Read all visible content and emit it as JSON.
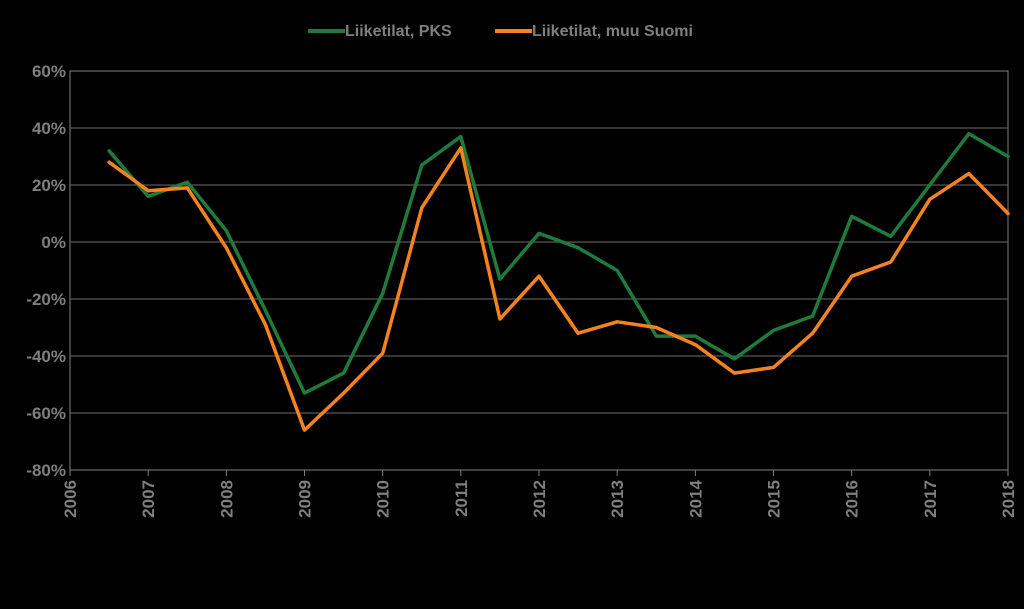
{
  "chart_data": {
    "type": "line",
    "title": "",
    "xlabel": "",
    "ylabel": "",
    "x_ticks": [
      "2006",
      "2007",
      "2008",
      "2009",
      "2010",
      "2011",
      "2012",
      "2013",
      "2014",
      "2015",
      "2016",
      "2017",
      "2018"
    ],
    "y_ticks": [
      "60%",
      "40%",
      "20%",
      "0%",
      "-20%",
      "-40%",
      "-60%",
      "-80%"
    ],
    "xlim": [
      2006,
      2018
    ],
    "ylim": [
      -80,
      60
    ],
    "y_unit": "%",
    "grid": "horizontal",
    "legend_position": "top-center",
    "x": [
      2006.5,
      2007,
      2007.5,
      2008,
      2008.5,
      2009,
      2009.5,
      2010,
      2010.5,
      2011,
      2011.5,
      2012,
      2012.5,
      2013,
      2013.5,
      2014,
      2014.5,
      2015,
      2015.5,
      2016,
      2016.5,
      2017,
      2017.5,
      2018
    ],
    "series": [
      {
        "name": "Liiketilat, PKS",
        "color": "#1e7b3c",
        "values": [
          32,
          16,
          21,
          4,
          -24,
          -53,
          -46,
          -18,
          27,
          37,
          -13,
          3,
          -2,
          -10,
          -33,
          -33,
          -41,
          -31,
          -26,
          9,
          2,
          20,
          38,
          30
        ]
      },
      {
        "name": "Liiketilat, muu Suomi",
        "color": "#f58220",
        "values": [
          28,
          18,
          19,
          -2,
          -29,
          -66,
          -53,
          -39,
          12,
          33,
          -27,
          -12,
          -32,
          -28,
          -30,
          -36,
          -46,
          -44,
          -32,
          -12,
          -7,
          15,
          24,
          10
        ]
      }
    ]
  }
}
